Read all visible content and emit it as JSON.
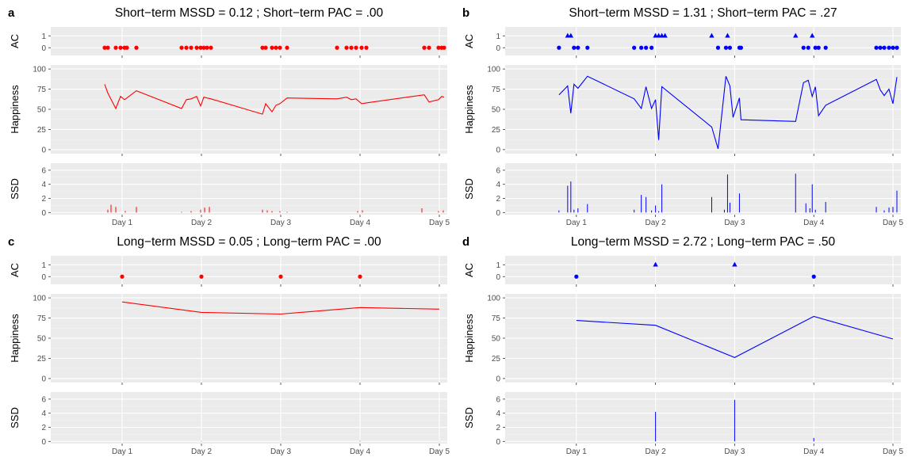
{
  "chart_data": [
    {
      "type": "line",
      "panel_label": "a",
      "title": "Short−term MSSD = 0.12 ; Short−term PAC = .00",
      "color": "#ff0000",
      "x_ticks": [
        "Day 1",
        "Day 2",
        "Day 3",
        "Day 4",
        "Day 5"
      ],
      "xlim": [
        0.1,
        5.1
      ],
      "ac_ylabel": "AC",
      "ac_ticks": [
        "0",
        "1"
      ],
      "happiness_ylabel": "Happiness",
      "happiness_ticks": [
        "0",
        "25",
        "50",
        "75",
        "100"
      ],
      "happiness_ylim": [
        -5,
        105
      ],
      "ssd_ylabel": "SSD",
      "ssd_ticks": [
        "0",
        "2",
        "4",
        "6"
      ],
      "ssd_ylim": [
        -0.3,
        7
      ],
      "x": [
        0.78,
        0.82,
        0.92,
        0.98,
        1.03,
        1.06,
        1.18,
        1.75,
        1.81,
        1.87,
        1.94,
        1.99,
        2.03,
        2.07,
        2.12,
        2.77,
        2.81,
        2.89,
        2.94,
        2.99,
        3.08,
        3.71,
        3.83,
        3.89,
        3.95,
        4.02,
        4.08,
        4.81,
        4.87,
        4.99,
        5.03,
        5.06
      ],
      "happiness": [
        81,
        70,
        51,
        66,
        62,
        64,
        73,
        51,
        62,
        63,
        66,
        54,
        65,
        64,
        63,
        44,
        57,
        47,
        55,
        57,
        64,
        63,
        65,
        62,
        63,
        57,
        58,
        68,
        59,
        62,
        66,
        65
      ],
      "ac_points": [
        {
          "x": 0.78,
          "v": 0
        },
        {
          "x": 0.82,
          "v": 0
        },
        {
          "x": 0.92,
          "v": 0
        },
        {
          "x": 0.98,
          "v": 0
        },
        {
          "x": 1.03,
          "v": 0
        },
        {
          "x": 1.06,
          "v": 0
        },
        {
          "x": 1.18,
          "v": 0
        },
        {
          "x": 1.75,
          "v": 0
        },
        {
          "x": 1.81,
          "v": 0
        },
        {
          "x": 1.87,
          "v": 0
        },
        {
          "x": 1.94,
          "v": 0
        },
        {
          "x": 1.99,
          "v": 0
        },
        {
          "x": 2.03,
          "v": 0
        },
        {
          "x": 2.07,
          "v": 0
        },
        {
          "x": 2.12,
          "v": 0
        },
        {
          "x": 2.77,
          "v": 0
        },
        {
          "x": 2.81,
          "v": 0
        },
        {
          "x": 2.89,
          "v": 0
        },
        {
          "x": 2.94,
          "v": 0
        },
        {
          "x": 2.99,
          "v": 0
        },
        {
          "x": 3.08,
          "v": 0
        },
        {
          "x": 3.71,
          "v": 0
        },
        {
          "x": 3.83,
          "v": 0
        },
        {
          "x": 3.89,
          "v": 0
        },
        {
          "x": 3.95,
          "v": 0
        },
        {
          "x": 4.02,
          "v": 0
        },
        {
          "x": 4.08,
          "v": 0
        },
        {
          "x": 4.81,
          "v": 0
        },
        {
          "x": 4.87,
          "v": 0
        },
        {
          "x": 4.99,
          "v": 0
        },
        {
          "x": 5.03,
          "v": 0
        },
        {
          "x": 5.06,
          "v": 0
        }
      ],
      "ssd_bars": [
        {
          "x": 0.82,
          "v": 0.4
        },
        {
          "x": 0.86,
          "v": 1.1
        },
        {
          "x": 0.92,
          "v": 0.8
        },
        {
          "x": 1.04,
          "v": 0.2
        },
        {
          "x": 1.18,
          "v": 0.8
        },
        {
          "x": 1.75,
          "v": 0.1
        },
        {
          "x": 1.87,
          "v": 0.2
        },
        {
          "x": 1.99,
          "v": 0.4
        },
        {
          "x": 2.04,
          "v": 0.7
        },
        {
          "x": 2.1,
          "v": 0.8
        },
        {
          "x": 2.77,
          "v": 0.4
        },
        {
          "x": 2.83,
          "v": 0.3
        },
        {
          "x": 2.89,
          "v": 0.2
        },
        {
          "x": 2.99,
          "v": 0.2
        },
        {
          "x": 3.08,
          "v": 0.1
        },
        {
          "x": 3.97,
          "v": 0.2
        },
        {
          "x": 4.03,
          "v": 0.3
        },
        {
          "x": 4.78,
          "v": 0.6
        },
        {
          "x": 4.99,
          "v": 0.2
        },
        {
          "x": 5.05,
          "v": 0.3
        }
      ]
    },
    {
      "type": "line",
      "panel_label": "b",
      "title": "Short−term MSSD = 1.31 ; Short−term PAC = .27",
      "color": "#0000ff",
      "x_ticks": [
        "Day 1",
        "Day 2",
        "Day 3",
        "Day 4",
        "Day 5"
      ],
      "xlim": [
        0.1,
        5.1
      ],
      "ac_ylabel": "AC",
      "ac_ticks": [
        "0",
        "1"
      ],
      "happiness_ylabel": "Happiness",
      "happiness_ticks": [
        "0",
        "25",
        "50",
        "75",
        "100"
      ],
      "happiness_ylim": [
        -5,
        105
      ],
      "ssd_ylabel": "SSD",
      "ssd_ticks": [
        "0",
        "2",
        "4",
        "6"
      ],
      "ssd_ylim": [
        -0.3,
        7
      ],
      "x": [
        0.78,
        0.89,
        0.93,
        0.97,
        1.02,
        1.14,
        1.73,
        1.82,
        1.88,
        1.95,
        2.0,
        2.04,
        2.08,
        2.71,
        2.79,
        2.89,
        2.94,
        2.98,
        3.06,
        3.08,
        3.77,
        3.87,
        3.93,
        3.98,
        4.02,
        4.06,
        4.15,
        4.79,
        4.84,
        4.89,
        4.95,
        5.0,
        5.05
      ],
      "happiness": [
        68,
        79,
        45,
        81,
        76,
        91,
        63,
        51,
        78,
        51,
        62,
        12,
        78,
        28,
        1,
        91,
        79,
        40,
        64,
        37,
        35,
        83,
        86,
        66,
        78,
        42,
        55,
        87,
        74,
        67,
        75,
        57,
        90
      ],
      "ac_points": [
        {
          "x": 0.78,
          "v": 0
        },
        {
          "x": 0.89,
          "v": 1
        },
        {
          "x": 0.93,
          "v": 1
        },
        {
          "x": 0.97,
          "v": 0
        },
        {
          "x": 1.02,
          "v": 0
        },
        {
          "x": 1.14,
          "v": 0
        },
        {
          "x": 1.73,
          "v": 0
        },
        {
          "x": 1.82,
          "v": 0
        },
        {
          "x": 1.88,
          "v": 0
        },
        {
          "x": 1.95,
          "v": 0
        },
        {
          "x": 2.0,
          "v": 1
        },
        {
          "x": 2.04,
          "v": 1
        },
        {
          "x": 2.08,
          "v": 1
        },
        {
          "x": 2.12,
          "v": 1
        },
        {
          "x": 2.71,
          "v": 1
        },
        {
          "x": 2.79,
          "v": 0
        },
        {
          "x": 2.89,
          "v": 0
        },
        {
          "x": 2.91,
          "v": 1
        },
        {
          "x": 2.94,
          "v": 0
        },
        {
          "x": 3.06,
          "v": 0
        },
        {
          "x": 3.08,
          "v": 0
        },
        {
          "x": 3.77,
          "v": 1
        },
        {
          "x": 3.87,
          "v": 0
        },
        {
          "x": 3.93,
          "v": 0
        },
        {
          "x": 3.98,
          "v": 1
        },
        {
          "x": 4.02,
          "v": 0
        },
        {
          "x": 4.06,
          "v": 0
        },
        {
          "x": 4.15,
          "v": 0
        },
        {
          "x": 4.79,
          "v": 0
        },
        {
          "x": 4.84,
          "v": 0
        },
        {
          "x": 4.89,
          "v": 0
        },
        {
          "x": 4.95,
          "v": 0
        },
        {
          "x": 5.0,
          "v": 0
        },
        {
          "x": 5.05,
          "v": 0
        }
      ],
      "ssd_bars": [
        {
          "x": 0.78,
          "v": 0.3
        },
        {
          "x": 0.89,
          "v": 3.8
        },
        {
          "x": 0.93,
          "v": 4.4
        },
        {
          "x": 0.97,
          "v": 0.4
        },
        {
          "x": 1.02,
          "v": 0.6
        },
        {
          "x": 1.14,
          "v": 1.2
        },
        {
          "x": 1.73,
          "v": 0.4
        },
        {
          "x": 1.82,
          "v": 2.5
        },
        {
          "x": 1.88,
          "v": 2.2
        },
        {
          "x": 1.95,
          "v": 0.3
        },
        {
          "x": 2.0,
          "v": 1.0
        },
        {
          "x": 2.04,
          "v": 0.2
        },
        {
          "x": 2.08,
          "v": 4.0
        },
        {
          "x": 2.71,
          "v": 2.2
        },
        {
          "x": 2.87,
          "v": 0.4
        },
        {
          "x": 2.91,
          "v": 5.4
        },
        {
          "x": 2.94,
          "v": 1.4
        },
        {
          "x": 3.06,
          "v": 2.7
        },
        {
          "x": 3.77,
          "v": 5.5
        },
        {
          "x": 3.9,
          "v": 1.3
        },
        {
          "x": 3.95,
          "v": 0.6
        },
        {
          "x": 3.98,
          "v": 4.0
        },
        {
          "x": 4.02,
          "v": 0.4
        },
        {
          "x": 4.15,
          "v": 1.5
        },
        {
          "x": 4.79,
          "v": 0.8
        },
        {
          "x": 4.89,
          "v": 0.3
        },
        {
          "x": 4.95,
          "v": 0.7
        },
        {
          "x": 5.0,
          "v": 0.8
        },
        {
          "x": 5.05,
          "v": 3.1
        }
      ]
    },
    {
      "type": "line",
      "panel_label": "c",
      "title": "Long−term MSSD = 0.05 ; Long−term PAC = .00",
      "color": "#ff0000",
      "x_ticks": [
        "Day 1",
        "Day 2",
        "Day 3",
        "Day 4",
        "Day 5"
      ],
      "xlim": [
        0.1,
        5.1
      ],
      "ac_ylabel": "AC",
      "ac_ticks": [
        "0",
        "1"
      ],
      "happiness_ylabel": "Happiness",
      "happiness_ticks": [
        "0",
        "25",
        "50",
        "75",
        "100"
      ],
      "happiness_ylim": [
        -5,
        105
      ],
      "ssd_ylabel": "SSD",
      "ssd_ticks": [
        "0",
        "2",
        "4",
        "6"
      ],
      "ssd_ylim": [
        -0.3,
        7
      ],
      "x": [
        1,
        2,
        3,
        4,
        5
      ],
      "happiness": [
        95,
        82,
        80,
        88,
        86
      ],
      "ac_points": [
        {
          "x": 1,
          "v": 0
        },
        {
          "x": 2,
          "v": 0
        },
        {
          "x": 3,
          "v": 0
        },
        {
          "x": 4,
          "v": 0
        }
      ],
      "ssd_bars": [
        {
          "x": 2,
          "v": 0.05
        },
        {
          "x": 3,
          "v": 0.02
        },
        {
          "x": 4,
          "v": 0.08
        },
        {
          "x": 5,
          "v": 0.02
        }
      ]
    },
    {
      "type": "line",
      "panel_label": "d",
      "title": "Long−term MSSD = 2.72 ; Long−term PAC = .50",
      "color": "#0000ff",
      "x_ticks": [
        "Day 1",
        "Day 2",
        "Day 3",
        "Day 4",
        "Day 5"
      ],
      "xlim": [
        0.1,
        5.1
      ],
      "ac_ylabel": "AC",
      "ac_ticks": [
        "0",
        "1"
      ],
      "happiness_ylabel": "Happiness",
      "happiness_ticks": [
        "0",
        "25",
        "50",
        "75",
        "100"
      ],
      "happiness_ylim": [
        -5,
        105
      ],
      "ssd_ylabel": "SSD",
      "ssd_ticks": [
        "0",
        "2",
        "4",
        "6"
      ],
      "ssd_ylim": [
        -0.3,
        7
      ],
      "x": [
        1,
        2,
        3,
        4,
        5
      ],
      "happiness": [
        72,
        66,
        26,
        77,
        49
      ],
      "ac_points": [
        {
          "x": 1,
          "v": 0
        },
        {
          "x": 2,
          "v": 1
        },
        {
          "x": 3,
          "v": 1
        },
        {
          "x": 4,
          "v": 0
        }
      ],
      "ssd_bars": [
        {
          "x": 2,
          "v": 4.2
        },
        {
          "x": 3,
          "v": 5.9
        },
        {
          "x": 4,
          "v": 0.5
        }
      ]
    }
  ]
}
